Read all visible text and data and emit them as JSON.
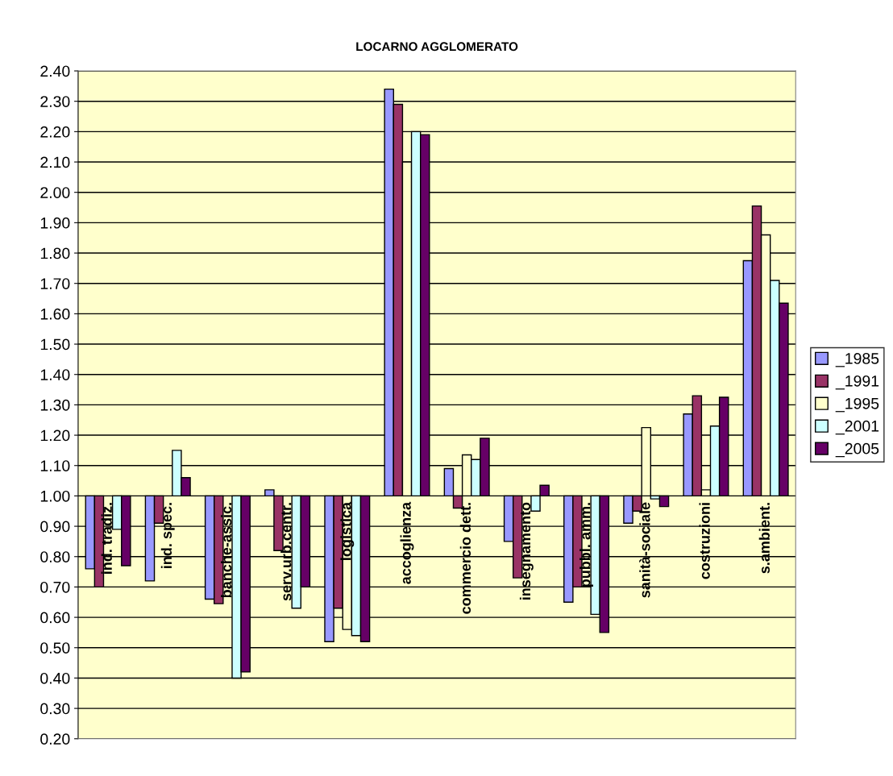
{
  "chart_data": {
    "type": "bar",
    "title": "LOCARNO AGGLOMERATO",
    "categories": [
      "ind. tradiz.",
      "ind. spec.",
      "banche-assic.",
      "serv.urb.centr.",
      "logistica",
      "accoglienza",
      "commercio dett.",
      "insegnamento",
      "pubbl. amm.",
      "sanità-sociale",
      "costruzioni",
      "s.ambient."
    ],
    "series": [
      {
        "name": "_1985",
        "color": "#9999ff",
        "base": [
          1.0,
          1.0,
          1.0,
          1.0,
          1.0,
          1.0,
          1.0,
          1.0,
          1.0,
          1.0,
          1.0,
          1.0
        ],
        "values": [
          -0.24,
          -0.28,
          -0.34,
          0.02,
          -0.48,
          1.34,
          0.09,
          -0.15,
          -0.35,
          -0.09,
          0.27,
          0.775
        ]
      },
      {
        "name": "_1991",
        "color": "#993366",
        "base": [
          1.0,
          1.0,
          1.0,
          1.0,
          1.0,
          1.0,
          1.0,
          1.0,
          1.0,
          1.0,
          1.0,
          1.0
        ],
        "values": [
          -0.3,
          -0.09,
          -0.355,
          -0.18,
          -0.37,
          1.29,
          -0.04,
          -0.27,
          -0.3,
          -0.05,
          0.33,
          0.955
        ]
      },
      {
        "name": "_1995",
        "color": "#ffffcc",
        "base": [
          null,
          null,
          null,
          null,
          1.0,
          1.0,
          1.0,
          null,
          null,
          1.0,
          1.0,
          1.0
        ],
        "values": [
          null,
          null,
          null,
          null,
          -0.44,
          1.1,
          0.135,
          null,
          null,
          0.225,
          0.02,
          0.86
        ]
      },
      {
        "name": "_2001",
        "color": "#ccffff",
        "base": [
          1.0,
          1.0,
          1.0,
          1.0,
          1.0,
          1.0,
          1.0,
          1.0,
          1.0,
          1.0,
          1.0,
          1.0
        ],
        "values": [
          -0.11,
          0.15,
          -0.6,
          -0.37,
          -0.46,
          1.2,
          0.12,
          -0.05,
          -0.39,
          -0.01,
          0.23,
          0.71
        ]
      },
      {
        "name": "_2005",
        "color": "#660066",
        "base": [
          1.0,
          1.0,
          1.0,
          1.0,
          1.0,
          1.0,
          1.0,
          1.0,
          1.0,
          1.0,
          1.0,
          1.0
        ],
        "values": [
          -0.23,
          0.06,
          -0.58,
          -0.3,
          -0.48,
          1.19,
          0.19,
          0.035,
          -0.45,
          -0.035,
          0.325,
          0.635
        ]
      }
    ],
    "ylim": [
      0.2,
      2.4
    ],
    "yticks": [
      {
        "value": 0.2,
        "label": "0.20"
      },
      {
        "value": 0.3,
        "label": "0.30"
      },
      {
        "value": 0.4,
        "label": "0.40"
      },
      {
        "value": 0.5,
        "label": "0.50"
      },
      {
        "value": 0.6,
        "label": "0.60"
      },
      {
        "value": 0.7,
        "label": "0.70"
      },
      {
        "value": 0.8,
        "label": "0.80"
      },
      {
        "value": 0.9,
        "label": "0.90"
      },
      {
        "value": 1.0,
        "label": "1.00"
      },
      {
        "value": 1.1,
        "label": "1.10"
      },
      {
        "value": 1.2,
        "label": "1.20"
      },
      {
        "value": 1.3,
        "label": "1.30"
      },
      {
        "value": 1.4,
        "label": "1.40"
      },
      {
        "value": 1.5,
        "label": "1.50"
      },
      {
        "value": 1.6,
        "label": "1.60"
      },
      {
        "value": 1.7,
        "label": "1.70"
      },
      {
        "value": 1.8,
        "label": "1.80"
      },
      {
        "value": 1.9,
        "label": "1.90"
      },
      {
        "value": 2.0,
        "label": "2.00"
      },
      {
        "value": 2.1,
        "label": "2.10"
      },
      {
        "value": 2.2,
        "label": "2.20"
      },
      {
        "value": 2.3,
        "label": "2.30"
      },
      {
        "value": 2.4,
        "label": "2.40"
      }
    ],
    "grid": "y",
    "legend": "right"
  }
}
